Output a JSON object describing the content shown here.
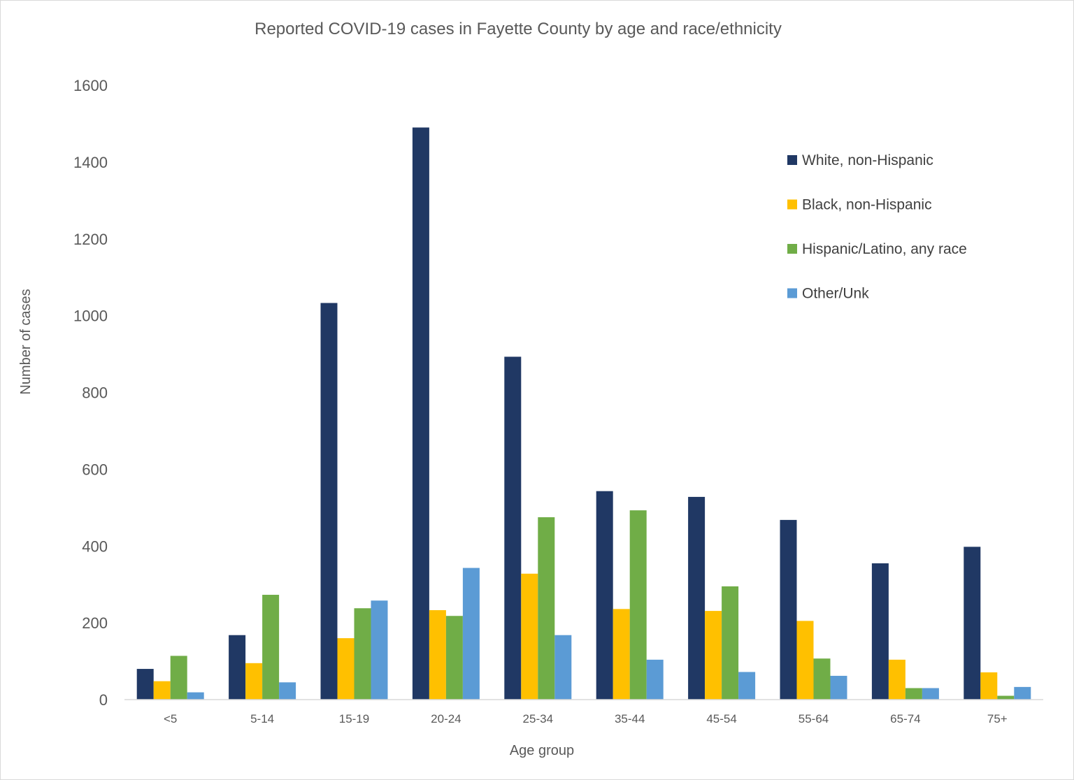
{
  "chart_data": {
    "type": "bar",
    "title": "Reported COVID-19 cases in Fayette County by age and race/ethnicity",
    "xlabel": "Age group",
    "ylabel": "Number of cases",
    "ylim": [
      0,
      1600
    ],
    "yticks": [
      0,
      200,
      400,
      600,
      800,
      1000,
      1200,
      1400,
      1600
    ],
    "grid": false,
    "legend_position": "top-right",
    "categories": [
      "<5",
      "5-14",
      "15-19",
      "20-24",
      "25-34",
      "35-44",
      "45-54",
      "55-64",
      "65-74",
      "75+"
    ],
    "series": [
      {
        "name": "White, non-Hispanic",
        "color": "#203864",
        "values": [
          80,
          168,
          1033,
          1490,
          893,
          543,
          528,
          468,
          355,
          398
        ]
      },
      {
        "name": "Black, non-Hispanic",
        "color": "#ffc000",
        "values": [
          48,
          95,
          160,
          233,
          328,
          236,
          231,
          205,
          104,
          71
        ]
      },
      {
        "name": "Hispanic/Latino, any race",
        "color": "#70ad47",
        "values": [
          114,
          273,
          238,
          218,
          475,
          493,
          295,
          107,
          30,
          10
        ]
      },
      {
        "name": "Other/Unk",
        "color": "#5b9bd5",
        "values": [
          19,
          45,
          258,
          343,
          168,
          104,
          72,
          62,
          30,
          33
        ]
      }
    ]
  }
}
